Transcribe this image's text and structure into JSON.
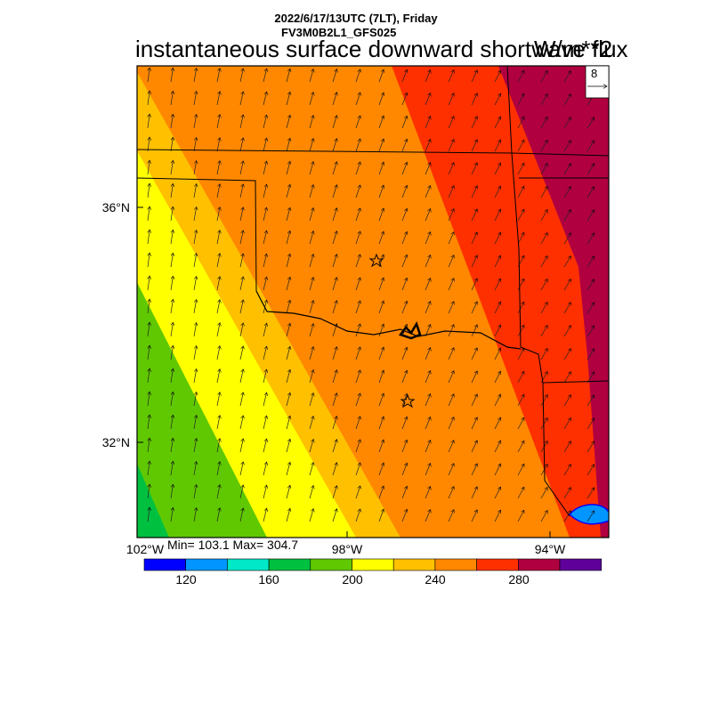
{
  "header": {
    "date_line": "2022/6/17/13UTC (7LT), Friday",
    "model_line": "FV3M0B2L1_GFS025",
    "title": "instantaneous surface downward shortwave flux",
    "units": "W/m**2"
  },
  "map": {
    "lat_labels": [
      "36°N",
      "32°N"
    ],
    "lon_labels": [
      "102°W",
      "98°W",
      "94°W"
    ],
    "stats": "Min= 103.1 Max= 304.7",
    "wind_reference": {
      "value": "8"
    },
    "markers": [
      "star",
      "star"
    ]
  },
  "colorbar": {
    "colors": [
      "#0000ff",
      "#0095ff",
      "#00e8c8",
      "#00c040",
      "#60c800",
      "#ffff00",
      "#ffc000",
      "#ff8800",
      "#ff3000",
      "#b00040",
      "#60009a"
    ],
    "tick_labels": [
      "120",
      "160",
      "200",
      "240",
      "280"
    ]
  }
}
